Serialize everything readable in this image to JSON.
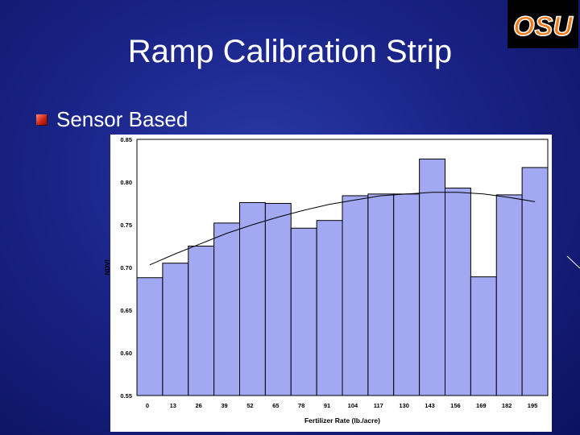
{
  "slide": {
    "title": "Ramp Calibration Strip",
    "bullet": "Sensor Based",
    "logo_text": "OSU"
  },
  "colors": {
    "background": "#1a2488",
    "bar_fill": "#a3a8f2",
    "bar_stroke": "#000000",
    "trendline": "#000000",
    "logo_orange": "#f07a1a"
  },
  "chart_data": {
    "type": "bar",
    "title": "",
    "xlabel": "Fertilizer Rate (lb./acre)",
    "ylabel": "NDVI",
    "categories": [
      "0",
      "13",
      "26",
      "39",
      "52",
      "65",
      "78",
      "91",
      "104",
      "117",
      "130",
      "143",
      "156",
      "169",
      "182",
      "195"
    ],
    "values": [
      0.688,
      0.705,
      0.725,
      0.752,
      0.776,
      0.775,
      0.746,
      0.755,
      0.784,
      0.786,
      0.786,
      0.827,
      0.793,
      0.689,
      0.785,
      0.817
    ],
    "ylim": [
      0.55,
      0.85
    ],
    "yticks": [
      "0.85",
      "0.80",
      "0.75",
      "0.70",
      "0.65",
      "0.60",
      "0.55"
    ],
    "ytick_values": [
      0.85,
      0.8,
      0.75,
      0.7,
      0.65,
      0.6,
      0.55
    ],
    "trendline": {
      "type": "quadratic",
      "points": [
        [
          0,
          0.703
        ],
        [
          13,
          0.716
        ],
        [
          26,
          0.728
        ],
        [
          39,
          0.74
        ],
        [
          52,
          0.75
        ],
        [
          65,
          0.759
        ],
        [
          78,
          0.767
        ],
        [
          91,
          0.774
        ],
        [
          104,
          0.779
        ],
        [
          117,
          0.784
        ],
        [
          130,
          0.786
        ],
        [
          143,
          0.788
        ],
        [
          156,
          0.788
        ],
        [
          169,
          0.786
        ],
        [
          182,
          0.782
        ],
        [
          195,
          0.777
        ]
      ]
    },
    "grid": false,
    "legend": "none"
  }
}
